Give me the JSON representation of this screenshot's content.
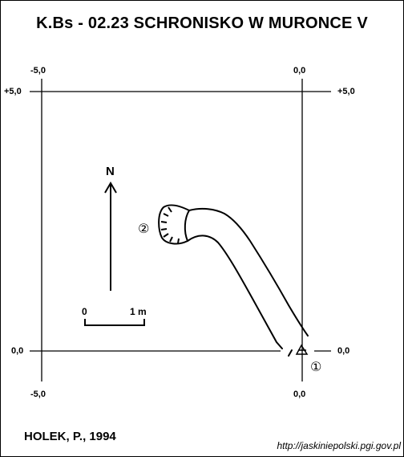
{
  "title": "K.Bs - 02.23  SCHRONISKO W MURONCE V",
  "grid": {
    "top_left_x": "-5,0",
    "top_right_x": "0,0",
    "top_left_y": "+5,0",
    "top_right_y": "+5,0",
    "bottom_left_y": "0,0",
    "bottom_right_y": "0,0",
    "bottom_left_x": "-5,0",
    "bottom_right_x": "0,0"
  },
  "north_label": "N",
  "scale": {
    "start": "0",
    "end": "1 m"
  },
  "markers": {
    "entrance_1": "①",
    "entrance_2": "②"
  },
  "author": "HOLEK, P., 1994",
  "source": "http://jaskiniepolski.pgi.gov.pl",
  "colors": {
    "ink": "#000000",
    "background": "#ffffff"
  }
}
